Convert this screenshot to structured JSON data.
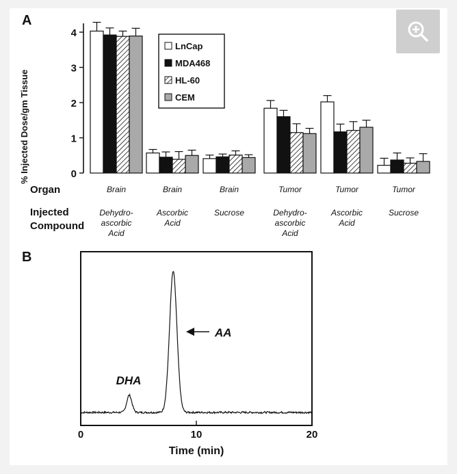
{
  "ui": {
    "zoom_icon": "zoom-in-icon",
    "background": "#f2f2f2",
    "button_color": "#cfcfcf"
  },
  "chart_data": [
    {
      "panel": "A",
      "type": "bar",
      "ylabel": "% Injected Dose/gm Tissue",
      "ylim": [
        0,
        4.2
      ],
      "yticks": [
        "0",
        "1",
        "2",
        "3",
        "4"
      ],
      "grid": false,
      "legend_position": "top-center",
      "row_labels": {
        "organ": "Organ",
        "compound_line1": "Injected",
        "compound_line2": "Compound"
      },
      "categories": [
        {
          "organ": "Brain",
          "compound": [
            "Dehydro-",
            "ascorbic",
            "Acid"
          ]
        },
        {
          "organ": "Brain",
          "compound": [
            "Ascorbic",
            "Acid"
          ]
        },
        {
          "organ": "Brain",
          "compound": [
            "Sucrose"
          ]
        },
        {
          "organ": "Tumor",
          "compound": [
            "Dehydro-",
            "ascorbic",
            "Acid"
          ]
        },
        {
          "organ": "Tumor",
          "compound": [
            "Ascorbic",
            "Acid"
          ]
        },
        {
          "organ": "Tumor",
          "compound": [
            "Sucrose"
          ]
        }
      ],
      "series": [
        {
          "name": "LnCap",
          "fill": "white",
          "values": [
            4.03,
            0.57,
            0.41,
            1.84,
            2.02,
            0.22
          ],
          "errors": [
            0.25,
            0.1,
            0.1,
            0.22,
            0.18,
            0.2
          ]
        },
        {
          "name": "MDA468",
          "fill": "black",
          "values": [
            3.92,
            0.45,
            0.46,
            1.6,
            1.17,
            0.37
          ],
          "errors": [
            0.2,
            0.15,
            0.08,
            0.18,
            0.22,
            0.2
          ]
        },
        {
          "name": "HL-60",
          "fill": "hatch",
          "values": [
            3.88,
            0.39,
            0.51,
            1.15,
            1.21,
            0.28
          ],
          "errors": [
            0.15,
            0.22,
            0.12,
            0.25,
            0.25,
            0.15
          ]
        },
        {
          "name": "CEM",
          "fill": "gray",
          "values": [
            3.89,
            0.5,
            0.44,
            1.12,
            1.3,
            0.33
          ],
          "errors": [
            0.22,
            0.15,
            0.08,
            0.15,
            0.2,
            0.22
          ]
        }
      ]
    },
    {
      "panel": "B",
      "type": "line",
      "xlabel": "Time (min)",
      "xlim": [
        0,
        20
      ],
      "xticks": [
        "0",
        "10",
        "20"
      ],
      "ylim": [
        0,
        1
      ],
      "grid": false,
      "peaks": [
        {
          "label": "DHA",
          "time": 4.2,
          "height": 0.11
        },
        {
          "label": "AA",
          "time": 8.0,
          "height": 0.9
        }
      ],
      "baseline": 0.0
    }
  ]
}
